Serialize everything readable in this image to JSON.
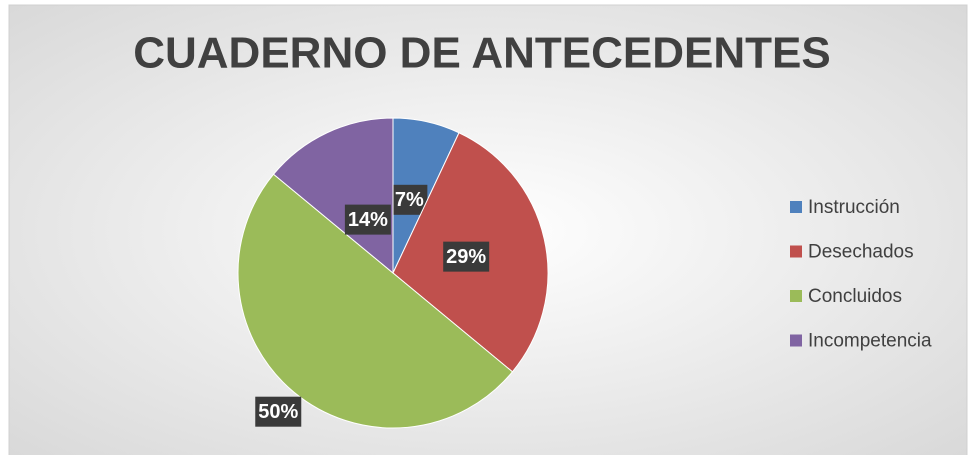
{
  "chart_data": {
    "type": "pie",
    "title": "CUADERNO DE ANTECEDENTES",
    "categories": [
      "Instrucción",
      "Desechados",
      "Concluidos",
      "Incompetencia"
    ],
    "values": [
      7,
      29,
      50,
      14
    ],
    "value_labels": [
      "7%",
      "29%",
      "50%",
      "14%"
    ],
    "colors": [
      "#4f81bd",
      "#c0504d",
      "#9bbb59",
      "#8064a2"
    ],
    "legend": "right"
  }
}
